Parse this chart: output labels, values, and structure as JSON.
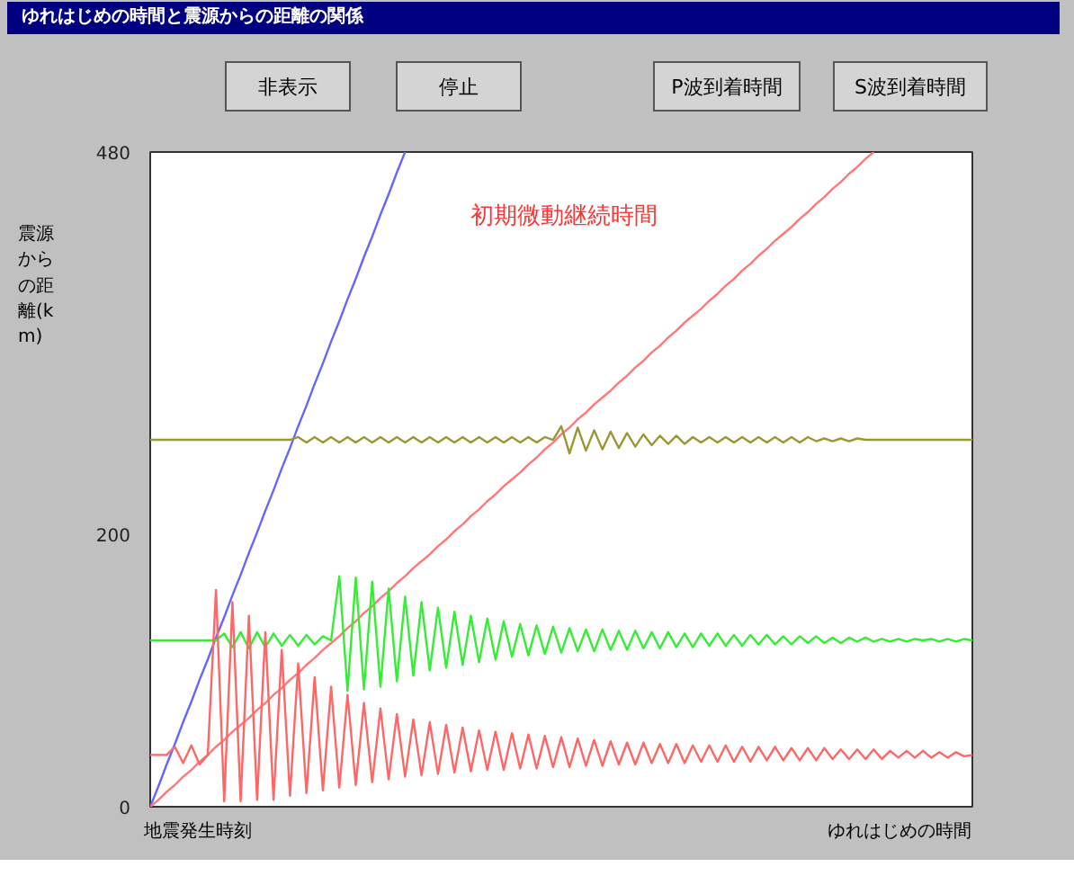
{
  "chart_data": {
    "type": "line",
    "title": "ゆれはじめの時間と震源からの距離の関係",
    "xlabel": "ゆれはじめの時間",
    "ylabel": "震源からの距離(km)",
    "annotations": [
      "非表示",
      "停止",
      "P波到着時間",
      "S波到着時間",
      "初期微動継続時間",
      "地震発生時刻"
    ],
    "categories": [
      null,
      null,
      null,
      null,
      null,
      null,
      null,
      null,
      null,
      null,
      null,
      null,
      null,
      null,
      null,
      null,
      null,
      null,
      null,
      null,
      null,
      null,
      null,
      null,
      null,
      null,
      null,
      null,
      null,
      null,
      null,
      null,
      null,
      null,
      null,
      null,
      null,
      null,
      null,
      null,
      null,
      null,
      null,
      null,
      null,
      null,
      null,
      null,
      null,
      null,
      null,
      null,
      null,
      null,
      null,
      null,
      null,
      null,
      null,
      null,
      null,
      null,
      null,
      null,
      null,
      null,
      null,
      null,
      null,
      null,
      null,
      null,
      null,
      null,
      null,
      null,
      null,
      null,
      null,
      null,
      null,
      null,
      null,
      null,
      null,
      null,
      null,
      null,
      null,
      null,
      null,
      null,
      null,
      null,
      null,
      null,
      null,
      null,
      null,
      null,
      null
    ],
    "ylim": [
      0,
      480
    ],
    "yticks": [
      0,
      200,
      480
    ],
    "tick_labels": "y",
    "grid": false,
    "series": [
      {
        "color": "#6666ff",
        "values": [
          0,
          15,
          31,
          46,
          62,
          77,
          93,
          108,
          124,
          139,
          155,
          170,
          186,
          201,
          217,
          232,
          248,
          263,
          279,
          294,
          310,
          325,
          341,
          356,
          372,
          387,
          403,
          418,
          434,
          449,
          465,
          480,
          null,
          null,
          null,
          null,
          null,
          null,
          null,
          null,
          null,
          null,
          null,
          null,
          null,
          null,
          null,
          null,
          null,
          null,
          null,
          null,
          null,
          null,
          null,
          null,
          null,
          null,
          null,
          null,
          null,
          null,
          null,
          null,
          null,
          null,
          null,
          null,
          null,
          null,
          null,
          null,
          null,
          null,
          null,
          null,
          null,
          null,
          null,
          null,
          null,
          null,
          null,
          null,
          null,
          null,
          null,
          null,
          null,
          null,
          null,
          null,
          null,
          null,
          null,
          null,
          null,
          null,
          null,
          null,
          null
        ]
      },
      {
        "color": "#ff7777",
        "values": [
          0,
          5,
          11,
          16,
          22,
          27,
          33,
          38,
          44,
          49,
          55,
          60,
          65,
          71,
          76,
          82,
          87,
          93,
          98,
          104,
          109,
          115,
          120,
          125,
          131,
          136,
          142,
          147,
          153,
          158,
          164,
          169,
          175,
          180,
          185,
          191,
          196,
          202,
          207,
          213,
          218,
          224,
          229,
          235,
          240,
          245,
          251,
          256,
          262,
          267,
          273,
          278,
          284,
          289,
          295,
          300,
          305,
          311,
          316,
          322,
          327,
          333,
          338,
          344,
          349,
          355,
          360,
          365,
          371,
          376,
          382,
          387,
          393,
          398,
          404,
          409,
          415,
          420,
          425,
          431,
          436,
          442,
          447,
          453,
          458,
          464,
          469,
          475,
          480,
          null,
          null,
          null,
          null,
          null,
          null,
          null,
          null,
          null,
          null,
          null,
          null
        ]
      },
      {
        "color": "#999933",
        "values": [
          269,
          269,
          269,
          269,
          269,
          269,
          269,
          269,
          269,
          269,
          269,
          269,
          269,
          269,
          269,
          269,
          269,
          269,
          271,
          267,
          271,
          267,
          271,
          267,
          271,
          267,
          271,
          267,
          271,
          267,
          271,
          267,
          271,
          267,
          271,
          267,
          271,
          267,
          271,
          267,
          271,
          267,
          271,
          267,
          271,
          267,
          271,
          267,
          271,
          269,
          279,
          259,
          278,
          261,
          276,
          262,
          275,
          263,
          274,
          264,
          273,
          265,
          272,
          266,
          272,
          266,
          271,
          267,
          271,
          267,
          271,
          267,
          271,
          267,
          271,
          267,
          271,
          267,
          271,
          267,
          271,
          268,
          270,
          268,
          270,
          268,
          270,
          269,
          269,
          269,
          269,
          269,
          269,
          269,
          269,
          269,
          269,
          269,
          269,
          269,
          269
        ]
      },
      {
        "color": "#33ee33",
        "values": [
          122,
          122,
          122,
          122,
          122,
          122,
          122,
          122,
          122,
          127,
          117,
          128,
          116,
          128,
          117,
          127,
          118,
          126,
          118,
          126,
          119,
          125,
          122,
          169,
          85,
          168,
          86,
          165,
          88,
          160,
          92,
          154,
          96,
          150,
          100,
          146,
          102,
          143,
          104,
          140,
          106,
          138,
          108,
          136,
          110,
          134,
          111,
          133,
          112,
          132,
          113,
          131,
          114,
          130,
          114,
          130,
          115,
          129,
          115,
          129,
          116,
          128,
          116,
          128,
          117,
          127,
          117,
          127,
          118,
          127,
          118,
          126,
          118,
          126,
          119,
          126,
          119,
          125,
          119,
          125,
          120,
          125,
          120,
          124,
          120,
          124,
          121,
          124,
          121,
          123,
          121,
          123,
          121,
          123,
          122,
          123,
          121,
          123,
          121,
          123,
          122
        ]
      },
      {
        "color": "#ff6666",
        "values": [
          38,
          38,
          38,
          44,
          32,
          45,
          31,
          38,
          159,
          4,
          150,
          4,
          140,
          5,
          128,
          5,
          115,
          8,
          105,
          10,
          95,
          12,
          88,
          14,
          82,
          16,
          76,
          18,
          72,
          20,
          68,
          22,
          64,
          23,
          62,
          24,
          60,
          25,
          58,
          26,
          56,
          27,
          55,
          27,
          54,
          28,
          53,
          28,
          52,
          29,
          51,
          29,
          50,
          30,
          49,
          30,
          48,
          31,
          47,
          31,
          47,
          32,
          46,
          32,
          46,
          32,
          45,
          33,
          45,
          33,
          45,
          33,
          44,
          33,
          44,
          34,
          44,
          34,
          43,
          34,
          43,
          34,
          43,
          35,
          42,
          35,
          42,
          35,
          42,
          35,
          41,
          36,
          41,
          36,
          41,
          36,
          40,
          36,
          40,
          37,
          38
        ]
      }
    ]
  }
}
